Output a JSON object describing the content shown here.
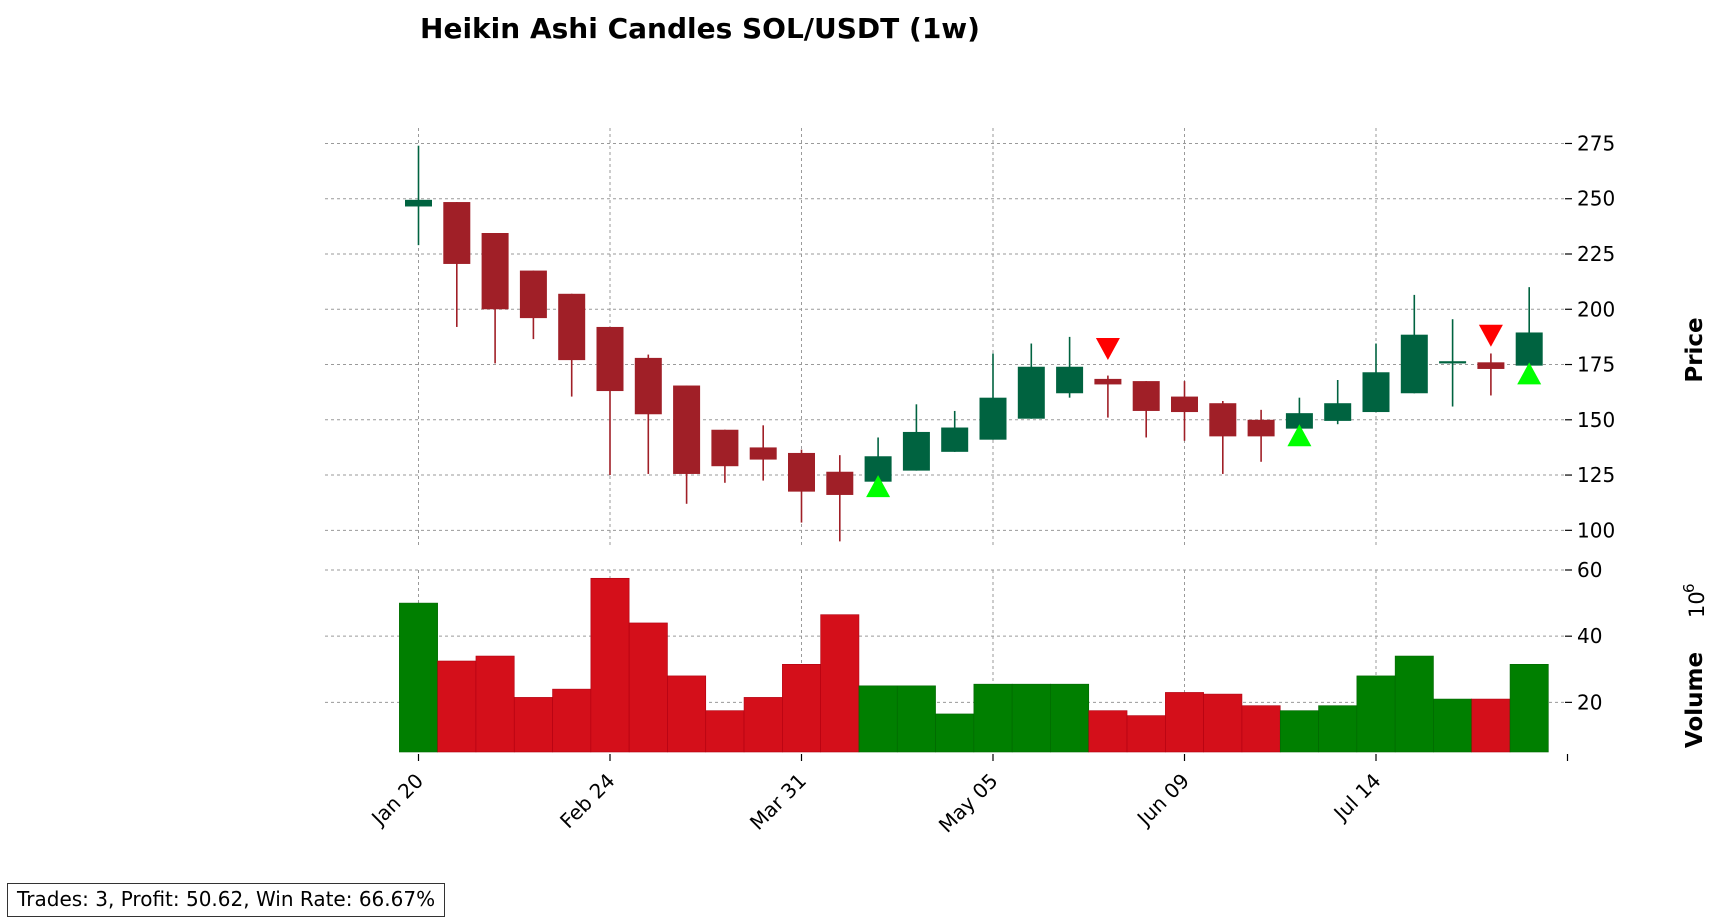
{
  "chart_data": {
    "type": "candlestick",
    "title": "Heikin Ashi Candles SOL/USDT (1w)",
    "price_panel": {
      "ylabel": "Price",
      "ylim": [
        92,
        282
      ],
      "yticks": [
        100,
        125,
        150,
        175,
        200,
        225,
        250,
        275
      ],
      "grid": true
    },
    "volume_panel": {
      "ylabel": "Volume",
      "scale_label": "10",
      "scale_exponent": "6",
      "ylim": [
        5,
        60
      ],
      "yticks": [
        20,
        40,
        60
      ],
      "grid": true
    },
    "x_tick_labels": [
      {
        "index": 0,
        "label": "Jan 20"
      },
      {
        "index": 5,
        "label": "Feb 24"
      },
      {
        "index": 10,
        "label": "Mar 31"
      },
      {
        "index": 15,
        "label": "May 05"
      },
      {
        "index": 20,
        "label": "Jun 09"
      },
      {
        "index": 25,
        "label": "Jul 14"
      },
      {
        "index": 30,
        "label": ""
      }
    ],
    "colors": {
      "candle_up": "#006340",
      "candle_down": "#a01f27",
      "volume_up": "#007f00",
      "volume_down": "#d40f1a",
      "buy_marker": "#00ff00",
      "sell_marker": "#ff0000"
    },
    "candles": [
      {
        "open": 246.5,
        "close": 249.5,
        "high": 274,
        "low": 229,
        "volume": 50
      },
      {
        "open": 248.5,
        "close": 220.5,
        "high": 248.5,
        "low": 192,
        "volume": 32.5
      },
      {
        "open": 234.5,
        "close": 200,
        "high": 234.5,
        "low": 175.5,
        "volume": 34
      },
      {
        "open": 217.5,
        "close": 196,
        "high": 217.5,
        "low": 186.5,
        "volume": 21.5
      },
      {
        "open": 207,
        "close": 177,
        "high": 207,
        "low": 160.5,
        "volume": 24
      },
      {
        "open": 192,
        "close": 163,
        "high": 192,
        "low": 125,
        "volume": 57.5
      },
      {
        "open": 178,
        "close": 152.5,
        "high": 179.5,
        "low": 125.5,
        "volume": 44
      },
      {
        "open": 165.5,
        "close": 125.5,
        "high": 165.5,
        "low": 112,
        "volume": 28
      },
      {
        "open": 145.5,
        "close": 129,
        "high": 145.5,
        "low": 121.5,
        "volume": 17.5
      },
      {
        "open": 137.5,
        "close": 132,
        "high": 147.5,
        "low": 122.5,
        "volume": 21.5
      },
      {
        "open": 135,
        "close": 117.5,
        "high": 136.5,
        "low": 103.5,
        "volume": 31.5
      },
      {
        "open": 126.5,
        "close": 116,
        "high": 134,
        "low": 95,
        "volume": 46.5
      },
      {
        "open": 122,
        "close": 133.5,
        "high": 142,
        "low": 122,
        "volume": 25
      },
      {
        "open": 127,
        "close": 144.5,
        "high": 157,
        "low": 127,
        "volume": 25
      },
      {
        "open": 135.5,
        "close": 146.5,
        "high": 154,
        "low": 135.5,
        "volume": 16.5
      },
      {
        "open": 141,
        "close": 160,
        "high": 180,
        "low": 141,
        "volume": 25.5
      },
      {
        "open": 150.5,
        "close": 174,
        "high": 184.5,
        "low": 150.5,
        "volume": 25.5
      },
      {
        "open": 162,
        "close": 174,
        "high": 187.5,
        "low": 160,
        "volume": 25.5
      },
      {
        "open": 168.5,
        "close": 166,
        "high": 170,
        "low": 151,
        "volume": 17.5
      },
      {
        "open": 167.5,
        "close": 154,
        "high": 167.5,
        "low": 142,
        "volume": 16
      },
      {
        "open": 160.5,
        "close": 153.5,
        "high": 167.5,
        "low": 140.5,
        "volume": 23
      },
      {
        "open": 157.5,
        "close": 142.5,
        "high": 158.5,
        "low": 125.5,
        "volume": 22.5
      },
      {
        "open": 150,
        "close": 142.5,
        "high": 154.5,
        "low": 131,
        "volume": 19
      },
      {
        "open": 146,
        "close": 153,
        "high": 160,
        "low": 146,
        "volume": 17.5
      },
      {
        "open": 149.5,
        "close": 157.5,
        "high": 168,
        "low": 148,
        "volume": 19
      },
      {
        "open": 153.5,
        "close": 171.5,
        "high": 184.5,
        "low": 153.5,
        "volume": 28
      },
      {
        "open": 162,
        "close": 188.5,
        "high": 206.5,
        "low": 162,
        "volume": 34
      },
      {
        "open": 175.5,
        "close": 176.5,
        "high": 195.5,
        "low": 156,
        "volume": 21
      },
      {
        "open": 176,
        "close": 173,
        "high": 180,
        "low": 161,
        "volume": 21
      },
      {
        "open": 174.5,
        "close": 189.5,
        "high": 210,
        "low": 174.5,
        "volume": 31.5
      }
    ],
    "signals": [
      {
        "index": 12,
        "type": "buy",
        "price": 120
      },
      {
        "index": 18,
        "type": "sell",
        "price": 182
      },
      {
        "index": 23,
        "type": "buy",
        "price": 143
      },
      {
        "index": 28,
        "type": "sell",
        "price": 188
      },
      {
        "index": 29,
        "type": "buy",
        "price": 171
      }
    ]
  },
  "stats": {
    "text": "Trades: 3, Profit: 50.62, Win Rate: 66.67%"
  }
}
